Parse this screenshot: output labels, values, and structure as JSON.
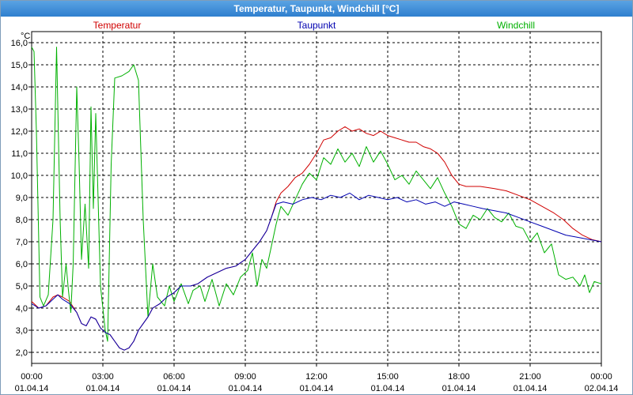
{
  "window": {
    "title": "Temperatur, Taupunkt, Windchill [°C]"
  },
  "chart_data": {
    "type": "line",
    "title": "Temperatur, Taupunkt, Windchill [°C]",
    "ylabel": "°C",
    "ylim": [
      1.5,
      16.5
    ],
    "xlim_hours": [
      0,
      24
    ],
    "grid": true,
    "legend_position": "top",
    "y_ticks": [
      "2,0",
      "3,0",
      "4,0",
      "5,0",
      "6,0",
      "7,0",
      "8,0",
      "9,0",
      "10,0",
      "11,0",
      "12,0",
      "13,0",
      "14,0",
      "15,0",
      "16,0"
    ],
    "x_ticks": [
      {
        "time": "00:00",
        "date": "01.04.14"
      },
      {
        "time": "03:00",
        "date": "01.04.14"
      },
      {
        "time": "06:00",
        "date": "01.04.14"
      },
      {
        "time": "09:00",
        "date": "01.04.14"
      },
      {
        "time": "12:00",
        "date": "01.04.14"
      },
      {
        "time": "15:00",
        "date": "01.04.14"
      },
      {
        "time": "18:00",
        "date": "01.04.14"
      },
      {
        "time": "21:00",
        "date": "01.04.14"
      },
      {
        "time": "00:00",
        "date": "02.04.14"
      }
    ],
    "series": [
      {
        "name": "Temperatur",
        "color": "#d00000",
        "points": [
          [
            0,
            4.3
          ],
          [
            0.3,
            4.0
          ],
          [
            0.6,
            4.1
          ],
          [
            0.9,
            4.5
          ],
          [
            1.1,
            4.6
          ],
          [
            1.3,
            4.5
          ],
          [
            1.6,
            4.3
          ],
          [
            1.9,
            3.8
          ],
          [
            2.1,
            3.3
          ],
          [
            2.3,
            3.2
          ],
          [
            2.5,
            3.6
          ],
          [
            2.7,
            3.5
          ],
          [
            2.9,
            3.1
          ],
          [
            3.1,
            2.9
          ],
          [
            3.3,
            2.8
          ],
          [
            3.5,
            2.5
          ],
          [
            3.7,
            2.2
          ],
          [
            3.9,
            2.1
          ],
          [
            4.1,
            2.2
          ],
          [
            4.3,
            2.5
          ],
          [
            4.5,
            3.0
          ],
          [
            4.7,
            3.3
          ],
          [
            4.9,
            3.6
          ],
          [
            5.1,
            4.0
          ],
          [
            5.4,
            4.2
          ],
          [
            5.7,
            4.5
          ],
          [
            6.0,
            4.7
          ],
          [
            6.3,
            5.0
          ],
          [
            6.7,
            5.0
          ],
          [
            7.0,
            5.1
          ],
          [
            7.4,
            5.4
          ],
          [
            7.8,
            5.6
          ],
          [
            8.2,
            5.8
          ],
          [
            8.6,
            5.9
          ],
          [
            9.0,
            6.2
          ],
          [
            9.3,
            6.6
          ],
          [
            9.6,
            7.0
          ],
          [
            9.9,
            7.5
          ],
          [
            10.1,
            8.1
          ],
          [
            10.3,
            8.8
          ],
          [
            10.5,
            9.2
          ],
          [
            10.8,
            9.5
          ],
          [
            11.1,
            9.9
          ],
          [
            11.4,
            10.1
          ],
          [
            11.7,
            10.5
          ],
          [
            12.0,
            11.0
          ],
          [
            12.3,
            11.6
          ],
          [
            12.6,
            11.7
          ],
          [
            12.9,
            12.0
          ],
          [
            13.2,
            12.2
          ],
          [
            13.5,
            12.0
          ],
          [
            13.8,
            12.1
          ],
          [
            14.1,
            11.9
          ],
          [
            14.4,
            11.8
          ],
          [
            14.7,
            12.0
          ],
          [
            15.0,
            11.8
          ],
          [
            15.3,
            11.7
          ],
          [
            15.6,
            11.6
          ],
          [
            15.9,
            11.5
          ],
          [
            16.2,
            11.5
          ],
          [
            16.5,
            11.3
          ],
          [
            16.8,
            11.2
          ],
          [
            17.1,
            11.0
          ],
          [
            17.4,
            10.6
          ],
          [
            17.7,
            10.0
          ],
          [
            18.0,
            9.6
          ],
          [
            18.3,
            9.5
          ],
          [
            18.9,
            9.5
          ],
          [
            19.5,
            9.4
          ],
          [
            20.0,
            9.3
          ],
          [
            20.5,
            9.1
          ],
          [
            21.0,
            8.9
          ],
          [
            21.5,
            8.6
          ],
          [
            22.0,
            8.3
          ],
          [
            22.4,
            8.0
          ],
          [
            22.8,
            7.6
          ],
          [
            23.2,
            7.3
          ],
          [
            23.6,
            7.1
          ],
          [
            24.0,
            7.0
          ]
        ]
      },
      {
        "name": "Taupunkt",
        "color": "#0000b0",
        "points": [
          [
            0,
            4.2
          ],
          [
            0.3,
            4.0
          ],
          [
            0.6,
            4.1
          ],
          [
            0.9,
            4.4
          ],
          [
            1.1,
            4.6
          ],
          [
            1.3,
            4.4
          ],
          [
            1.6,
            4.2
          ],
          [
            1.9,
            3.8
          ],
          [
            2.1,
            3.3
          ],
          [
            2.3,
            3.2
          ],
          [
            2.5,
            3.6
          ],
          [
            2.7,
            3.5
          ],
          [
            2.9,
            3.1
          ],
          [
            3.1,
            2.9
          ],
          [
            3.3,
            2.8
          ],
          [
            3.5,
            2.5
          ],
          [
            3.7,
            2.2
          ],
          [
            3.9,
            2.1
          ],
          [
            4.1,
            2.2
          ],
          [
            4.3,
            2.5
          ],
          [
            4.5,
            3.0
          ],
          [
            4.7,
            3.3
          ],
          [
            4.9,
            3.6
          ],
          [
            5.1,
            4.0
          ],
          [
            5.4,
            4.2
          ],
          [
            5.7,
            4.5
          ],
          [
            6.0,
            4.7
          ],
          [
            6.3,
            5.0
          ],
          [
            6.7,
            5.0
          ],
          [
            7.0,
            5.1
          ],
          [
            7.4,
            5.4
          ],
          [
            7.8,
            5.6
          ],
          [
            8.2,
            5.8
          ],
          [
            8.6,
            5.9
          ],
          [
            9.0,
            6.2
          ],
          [
            9.3,
            6.6
          ],
          [
            9.6,
            7.0
          ],
          [
            9.9,
            7.5
          ],
          [
            10.1,
            8.1
          ],
          [
            10.3,
            8.7
          ],
          [
            10.6,
            8.8
          ],
          [
            11.0,
            8.7
          ],
          [
            11.4,
            8.9
          ],
          [
            11.8,
            9.0
          ],
          [
            12.2,
            8.9
          ],
          [
            12.6,
            9.1
          ],
          [
            13.0,
            9.0
          ],
          [
            13.4,
            9.2
          ],
          [
            13.8,
            8.9
          ],
          [
            14.2,
            9.1
          ],
          [
            14.6,
            9.0
          ],
          [
            15.0,
            8.9
          ],
          [
            15.4,
            9.0
          ],
          [
            15.8,
            8.8
          ],
          [
            16.2,
            8.9
          ],
          [
            16.6,
            8.7
          ],
          [
            17.0,
            8.8
          ],
          [
            17.4,
            8.6
          ],
          [
            17.8,
            8.8
          ],
          [
            18.2,
            8.7
          ],
          [
            18.6,
            8.6
          ],
          [
            19.0,
            8.5
          ],
          [
            19.5,
            8.4
          ],
          [
            20.0,
            8.3
          ],
          [
            20.5,
            8.1
          ],
          [
            21.0,
            7.9
          ],
          [
            21.5,
            7.7
          ],
          [
            22.0,
            7.5
          ],
          [
            22.5,
            7.3
          ],
          [
            23.0,
            7.2
          ],
          [
            23.5,
            7.1
          ],
          [
            24.0,
            7.0
          ]
        ]
      },
      {
        "name": "Windchill",
        "color": "#00b000",
        "points": [
          [
            0,
            15.8
          ],
          [
            0.1,
            15.6
          ],
          [
            0.2,
            12.0
          ],
          [
            0.35,
            4.5
          ],
          [
            0.5,
            4.1
          ],
          [
            0.7,
            4.6
          ],
          [
            0.9,
            8.0
          ],
          [
            1.05,
            15.8
          ],
          [
            1.2,
            8.0
          ],
          [
            1.3,
            4.5
          ],
          [
            1.45,
            6.0
          ],
          [
            1.55,
            4.8
          ],
          [
            1.65,
            3.8
          ],
          [
            1.75,
            6.0
          ],
          [
            1.9,
            14.0
          ],
          [
            2.0,
            10.5
          ],
          [
            2.1,
            6.2
          ],
          [
            2.25,
            8.7
          ],
          [
            2.4,
            5.8
          ],
          [
            2.5,
            13.1
          ],
          [
            2.6,
            8.5
          ],
          [
            2.7,
            12.8
          ],
          [
            2.9,
            5.0
          ],
          [
            3.1,
            3.0
          ],
          [
            3.2,
            2.5
          ],
          [
            3.35,
            10.5
          ],
          [
            3.5,
            14.4
          ],
          [
            3.8,
            14.5
          ],
          [
            4.1,
            14.7
          ],
          [
            4.3,
            15.0
          ],
          [
            4.5,
            14.3
          ],
          [
            4.7,
            8.0
          ],
          [
            4.9,
            3.6
          ],
          [
            5.1,
            6.0
          ],
          [
            5.3,
            4.5
          ],
          [
            5.6,
            4.1
          ],
          [
            5.8,
            5.0
          ],
          [
            6.0,
            4.3
          ],
          [
            6.3,
            5.1
          ],
          [
            6.6,
            4.2
          ],
          [
            6.8,
            4.8
          ],
          [
            7.1,
            5.0
          ],
          [
            7.3,
            4.3
          ],
          [
            7.6,
            5.3
          ],
          [
            7.9,
            4.1
          ],
          [
            8.2,
            5.1
          ],
          [
            8.5,
            4.6
          ],
          [
            8.8,
            5.4
          ],
          [
            9.1,
            5.7
          ],
          [
            9.3,
            6.5
          ],
          [
            9.5,
            5.0
          ],
          [
            9.7,
            6.2
          ],
          [
            9.9,
            5.8
          ],
          [
            10.1,
            6.8
          ],
          [
            10.3,
            7.8
          ],
          [
            10.5,
            8.6
          ],
          [
            10.8,
            8.2
          ],
          [
            11.1,
            8.9
          ],
          [
            11.4,
            9.6
          ],
          [
            11.7,
            10.1
          ],
          [
            12.0,
            9.8
          ],
          [
            12.3,
            10.8
          ],
          [
            12.6,
            10.5
          ],
          [
            12.9,
            11.2
          ],
          [
            13.2,
            10.6
          ],
          [
            13.5,
            11.0
          ],
          [
            13.8,
            10.4
          ],
          [
            14.1,
            11.3
          ],
          [
            14.4,
            10.6
          ],
          [
            14.7,
            11.1
          ],
          [
            15.0,
            10.5
          ],
          [
            15.3,
            9.8
          ],
          [
            15.6,
            10.0
          ],
          [
            15.9,
            9.6
          ],
          [
            16.2,
            10.2
          ],
          [
            16.5,
            9.8
          ],
          [
            16.8,
            9.4
          ],
          [
            17.1,
            9.9
          ],
          [
            17.4,
            9.2
          ],
          [
            17.7,
            8.6
          ],
          [
            18.0,
            7.8
          ],
          [
            18.3,
            7.6
          ],
          [
            18.6,
            8.2
          ],
          [
            18.9,
            8.0
          ],
          [
            19.2,
            8.5
          ],
          [
            19.5,
            8.1
          ],
          [
            19.8,
            7.9
          ],
          [
            20.1,
            8.3
          ],
          [
            20.4,
            7.7
          ],
          [
            20.7,
            7.6
          ],
          [
            21.0,
            7.0
          ],
          [
            21.3,
            7.4
          ],
          [
            21.6,
            6.5
          ],
          [
            21.9,
            6.9
          ],
          [
            22.2,
            5.5
          ],
          [
            22.5,
            5.3
          ],
          [
            22.8,
            5.4
          ],
          [
            23.1,
            5.0
          ],
          [
            23.3,
            5.5
          ],
          [
            23.5,
            4.7
          ],
          [
            23.7,
            5.2
          ],
          [
            24.0,
            5.1
          ]
        ]
      }
    ]
  }
}
